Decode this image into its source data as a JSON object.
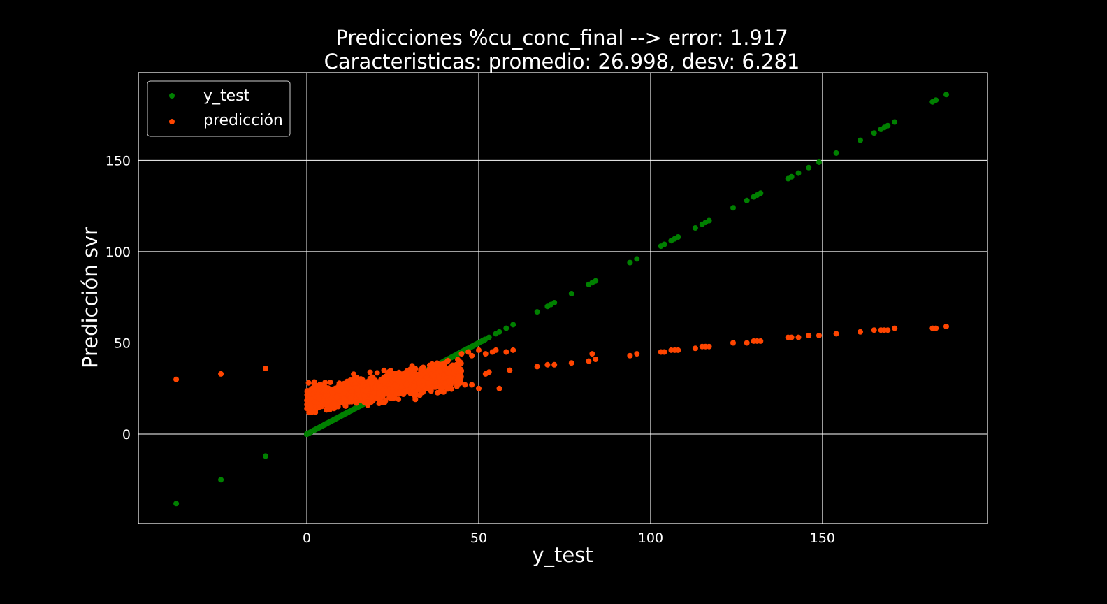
{
  "chart_data": {
    "type": "scatter",
    "title": "Predicciones %cu_conc_final --> error: 1.917",
    "subtitle": "Caracteristicas: promedio: 26.998, desv: 6.281",
    "xlabel": "y_test",
    "ylabel": "Predicción svr",
    "xlim": [
      -49,
      198
    ],
    "ylim": [
      -49,
      198
    ],
    "xticks": [
      0,
      50,
      100,
      150
    ],
    "yticks": [
      0,
      50,
      100,
      150
    ],
    "grid": true,
    "legend_position": "upper-left",
    "background": "#000000",
    "series": [
      {
        "name": "y_test",
        "color": "#008000",
        "points": [
          [
            -38,
            -38
          ],
          [
            -25,
            -25
          ],
          [
            -12,
            -12
          ],
          [
            0,
            0
          ],
          [
            1,
            1
          ],
          [
            2,
            2
          ],
          [
            3,
            3
          ],
          [
            4,
            4
          ],
          [
            5,
            5
          ],
          [
            6,
            6
          ],
          [
            7,
            7
          ],
          [
            8,
            8
          ],
          [
            9,
            9
          ],
          [
            10,
            10
          ],
          [
            11,
            11
          ],
          [
            12,
            12
          ],
          [
            13,
            13
          ],
          [
            14,
            14
          ],
          [
            15,
            15
          ],
          [
            16,
            16
          ],
          [
            17,
            17
          ],
          [
            18,
            18
          ],
          [
            19,
            19
          ],
          [
            20,
            20
          ],
          [
            21,
            21
          ],
          [
            22,
            22
          ],
          [
            23,
            23
          ],
          [
            24,
            24
          ],
          [
            25,
            25
          ],
          [
            26,
            26
          ],
          [
            27,
            27
          ],
          [
            28,
            28
          ],
          [
            29,
            29
          ],
          [
            30,
            30
          ],
          [
            31,
            31
          ],
          [
            32,
            32
          ],
          [
            33,
            33
          ],
          [
            34,
            34
          ],
          [
            35,
            35
          ],
          [
            36,
            36
          ],
          [
            37,
            37
          ],
          [
            38,
            38
          ],
          [
            39,
            39
          ],
          [
            40,
            40
          ],
          [
            41,
            41
          ],
          [
            42,
            42
          ],
          [
            43,
            43
          ],
          [
            44,
            44
          ],
          [
            45,
            45
          ],
          [
            46,
            46
          ],
          [
            47,
            47
          ],
          [
            48,
            48
          ],
          [
            49,
            49
          ],
          [
            50,
            50
          ],
          [
            51,
            51
          ],
          [
            53,
            53
          ],
          [
            55,
            55
          ],
          [
            56,
            56
          ],
          [
            58,
            58
          ],
          [
            60,
            60
          ],
          [
            67,
            67
          ],
          [
            70,
            70
          ],
          [
            71,
            71
          ],
          [
            72,
            72
          ],
          [
            77,
            77
          ],
          [
            82,
            82
          ],
          [
            83,
            83
          ],
          [
            84,
            84
          ],
          [
            94,
            94
          ],
          [
            96,
            96
          ],
          [
            103,
            103
          ],
          [
            104,
            104
          ],
          [
            106,
            106
          ],
          [
            107,
            107
          ],
          [
            108,
            108
          ],
          [
            113,
            113
          ],
          [
            115,
            115
          ],
          [
            116,
            116
          ],
          [
            117,
            117
          ],
          [
            124,
            124
          ],
          [
            128,
            128
          ],
          [
            130,
            130
          ],
          [
            131,
            131
          ],
          [
            132,
            132
          ],
          [
            140,
            140
          ],
          [
            141,
            141
          ],
          [
            143,
            143
          ],
          [
            146,
            146
          ],
          [
            149,
            149
          ],
          [
            154,
            154
          ],
          [
            161,
            161
          ],
          [
            165,
            165
          ],
          [
            167,
            167
          ],
          [
            168,
            168
          ],
          [
            169,
            169
          ],
          [
            171,
            171
          ],
          [
            182,
            182
          ],
          [
            183,
            183
          ],
          [
            186,
            186
          ]
        ]
      },
      {
        "name": "predicción",
        "color": "#ff4500",
        "points": [
          [
            -38,
            30
          ],
          [
            -25,
            33
          ],
          [
            -12,
            36
          ],
          [
            45,
            44
          ],
          [
            47,
            45
          ],
          [
            48,
            43
          ],
          [
            50,
            46
          ],
          [
            52,
            44
          ],
          [
            54,
            45
          ],
          [
            55,
            46
          ],
          [
            58,
            45
          ],
          [
            60,
            46
          ],
          [
            44,
            30
          ],
          [
            46,
            27
          ],
          [
            48,
            27
          ],
          [
            50,
            25
          ],
          [
            52,
            33
          ],
          [
            53,
            34
          ],
          [
            56,
            25
          ],
          [
            59,
            35
          ],
          [
            67,
            37
          ],
          [
            70,
            38
          ],
          [
            72,
            38
          ],
          [
            77,
            39
          ],
          [
            82,
            40
          ],
          [
            83,
            44
          ],
          [
            84,
            41
          ],
          [
            94,
            43
          ],
          [
            96,
            44
          ],
          [
            103,
            45
          ],
          [
            104,
            45
          ],
          [
            106,
            46
          ],
          [
            107,
            46
          ],
          [
            108,
            46
          ],
          [
            113,
            47
          ],
          [
            115,
            48
          ],
          [
            116,
            48
          ],
          [
            117,
            48
          ],
          [
            124,
            50
          ],
          [
            128,
            50
          ],
          [
            130,
            51
          ],
          [
            131,
            51
          ],
          [
            132,
            51
          ],
          [
            140,
            53
          ],
          [
            141,
            53
          ],
          [
            143,
            53
          ],
          [
            146,
            54
          ],
          [
            149,
            54
          ],
          [
            154,
            55
          ],
          [
            161,
            56
          ],
          [
            165,
            57
          ],
          [
            167,
            57
          ],
          [
            168,
            57
          ],
          [
            169,
            57
          ],
          [
            171,
            58
          ],
          [
            182,
            58
          ],
          [
            183,
            58
          ],
          [
            186,
            59
          ]
        ]
      }
    ]
  }
}
